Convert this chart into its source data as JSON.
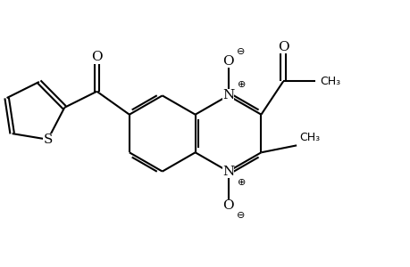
{
  "bg_color": "#ffffff",
  "line_color": "#000000",
  "line_width": 1.5,
  "font_size": 11,
  "small_font_size": 8,
  "side": 0.75,
  "xlim": [
    -3.8,
    4.2
  ],
  "ylim": [
    -2.3,
    2.3
  ]
}
